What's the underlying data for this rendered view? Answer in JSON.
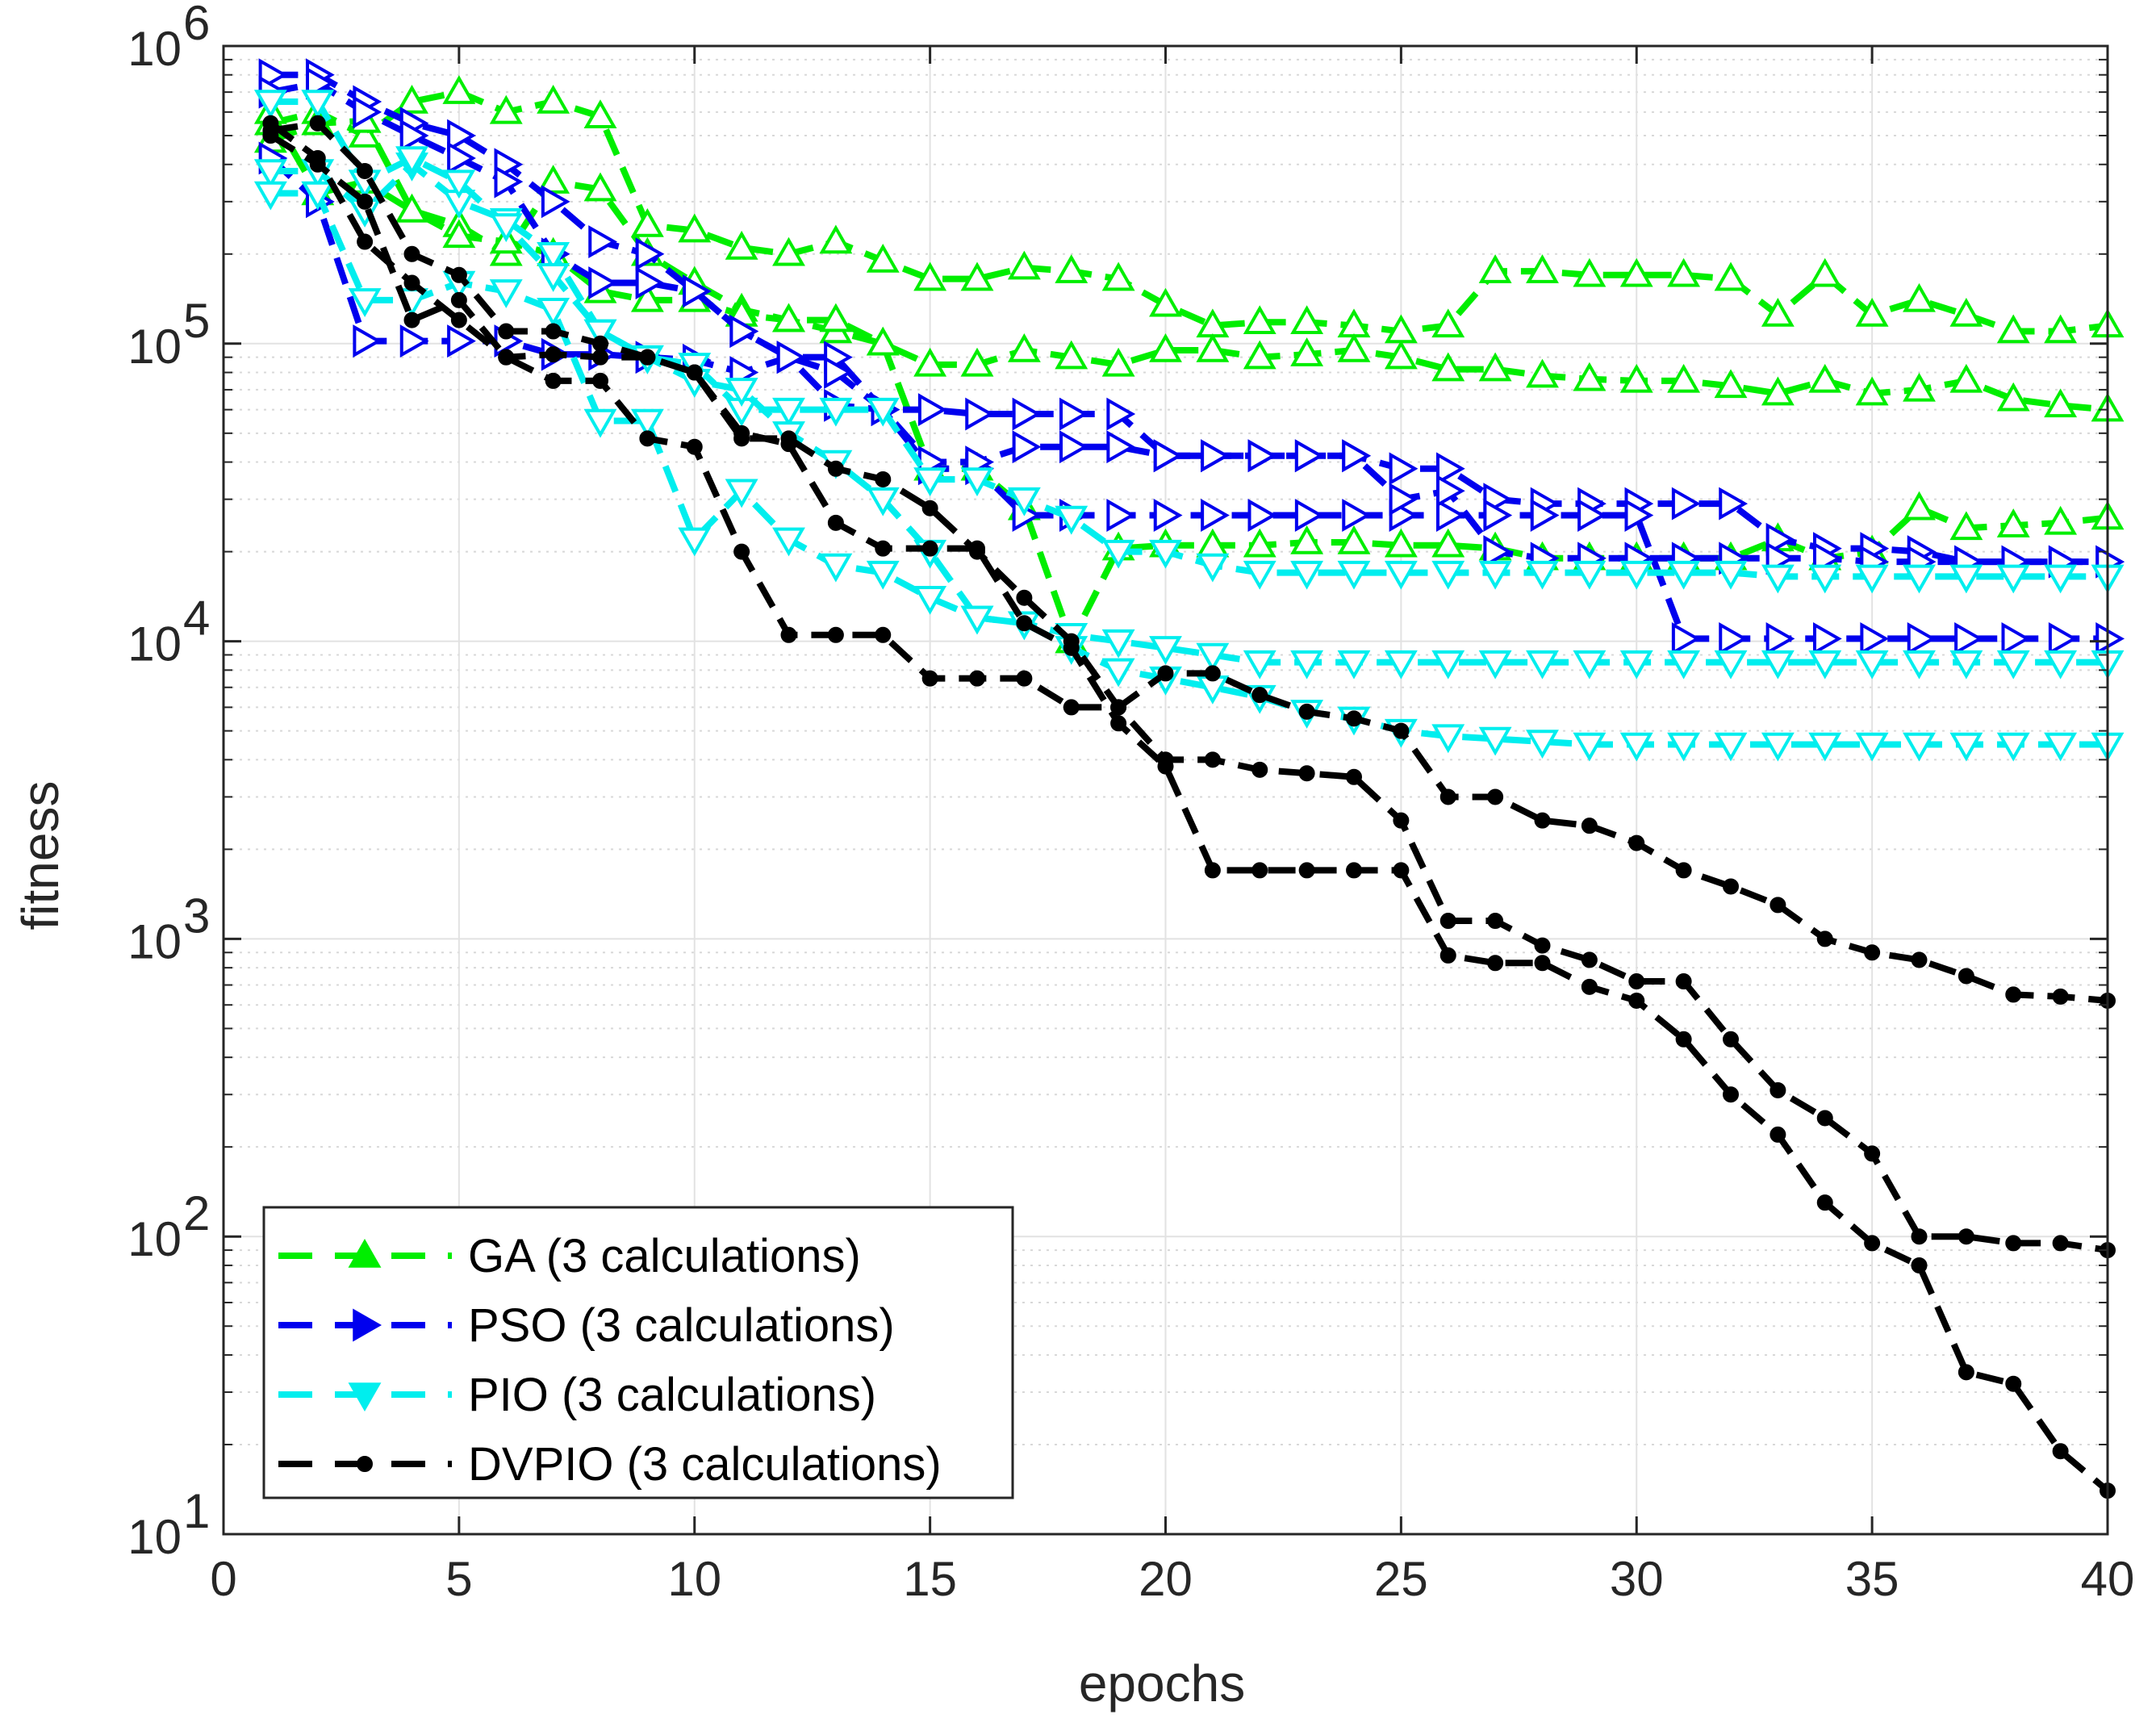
{
  "chart_data": {
    "type": "line",
    "title": "",
    "xlabel": "epochs",
    "ylabel": "fitness",
    "xscale": "linear",
    "yscale": "log",
    "xlim": [
      0,
      40
    ],
    "ylim": [
      10,
      1000000
    ],
    "grid": true,
    "minor_grid_y": true,
    "legend_position": "bottom-left",
    "x_ticks": [
      {
        "value": 0,
        "label": "0"
      },
      {
        "value": 5,
        "label": "5"
      },
      {
        "value": 10,
        "label": "10"
      },
      {
        "value": 15,
        "label": "15"
      },
      {
        "value": 20,
        "label": "20"
      },
      {
        "value": 25,
        "label": "25"
      },
      {
        "value": 30,
        "label": "30"
      },
      {
        "value": 35,
        "label": "35"
      },
      {
        "value": 40,
        "label": "40"
      }
    ],
    "y_ticks": [
      {
        "value": 10,
        "base": "10",
        "exp": "1"
      },
      {
        "value": 100,
        "base": "10",
        "exp": "2"
      },
      {
        "value": 1000,
        "base": "10",
        "exp": "3"
      },
      {
        "value": 10000,
        "base": "10",
        "exp": "4"
      },
      {
        "value": 100000,
        "base": "10",
        "exp": "5"
      },
      {
        "value": 1000000,
        "base": "10",
        "exp": "6"
      }
    ],
    "x": [
      1,
      2,
      3,
      4,
      5,
      6,
      7,
      8,
      9,
      10,
      11,
      12,
      13,
      14,
      15,
      16,
      17,
      18,
      19,
      20,
      21,
      22,
      23,
      24,
      25,
      26,
      27,
      28,
      29,
      30,
      31,
      32,
      33,
      34,
      35,
      36,
      37,
      38,
      39,
      40
    ],
    "legend": [
      {
        "label": "GA (3 calculations)",
        "color": "#00ee00",
        "marker": "triangle-up"
      },
      {
        "label": "PSO (3 calculations)",
        "color": "#0000ee",
        "marker": "triangle-right"
      },
      {
        "label": "PIO (3 calculations)",
        "color": "#00eeee",
        "marker": "triangle-down"
      },
      {
        "label": "DVPIO (3 calculations)",
        "color": "#000000",
        "marker": "dot"
      }
    ],
    "series": [
      {
        "name": "GA run 1",
        "group": "GA",
        "color": "#00ee00",
        "marker": "triangle-up",
        "values": [
          550000,
          600000,
          500000,
          650000,
          700000,
          600000,
          650000,
          580000,
          250000,
          240000,
          210000,
          200000,
          220000,
          190000,
          165000,
          165000,
          180000,
          175000,
          165000,
          135000,
          115000,
          118000,
          118000,
          115000,
          110000,
          115000,
          175000,
          175000,
          170000,
          170000,
          170000,
          165000,
          125000,
          170000,
          125000,
          140000,
          125000,
          110000,
          110000,
          115000
        ]
      },
      {
        "name": "GA run 2",
        "group": "GA",
        "color": "#00ee00",
        "marker": "triangle-up",
        "values": [
          480000,
          550000,
          560000,
          280000,
          250000,
          200000,
          350000,
          330000,
          200000,
          160000,
          130000,
          120000,
          110000,
          100000,
          85000,
          85000,
          95000,
          90000,
          85000,
          95000,
          95000,
          90000,
          92000,
          95000,
          90000,
          82000,
          82000,
          78000,
          76000,
          75000,
          75000,
          72000,
          68000,
          75000,
          68000,
          70000,
          75000,
          65000,
          62000,
          60000
        ]
      },
      {
        "name": "GA run 3",
        "group": "GA",
        "color": "#00ee00",
        "marker": "triangle-up",
        "values": [
          600000,
          320000,
          350000,
          280000,
          230000,
          220000,
          200000,
          150000,
          140000,
          140000,
          125000,
          120000,
          120000,
          100000,
          38000,
          38000,
          28000,
          10000,
          20500,
          21000,
          21000,
          21000,
          21500,
          21500,
          21000,
          21000,
          20500,
          19000,
          19000,
          19000,
          19000,
          19000,
          22000,
          19000,
          20000,
          28000,
          24000,
          24500,
          25000,
          26000
        ]
      },
      {
        "name": "PSO run 1",
        "group": "PSO",
        "color": "#0000ee",
        "marker": "triangle-right",
        "values": [
          800000,
          800000,
          650000,
          550000,
          500000,
          400000,
          300000,
          220000,
          200000,
          150000,
          110000,
          90000,
          90000,
          60000,
          60000,
          58000,
          58000,
          58000,
          58000,
          42000,
          42000,
          42000,
          42000,
          42000,
          38000,
          38000,
          30000,
          29000,
          29000,
          29000,
          29000,
          29000,
          22000,
          20500,
          20500,
          20000,
          18500,
          18500,
          18500,
          18500
        ]
      },
      {
        "name": "PSO run 2",
        "group": "PSO",
        "color": "#0000ee",
        "marker": "triangle-right",
        "values": [
          420000,
          300000,
          102000,
          102000,
          102000,
          102000,
          92000,
          92000,
          90000,
          88000,
          80000,
          90000,
          62000,
          60000,
          38000,
          38000,
          26500,
          26500,
          26500,
          26500,
          26500,
          26500,
          26500,
          26500,
          26500,
          26500,
          26500,
          26500,
          26500,
          26500,
          10200,
          10200,
          10200,
          10200,
          10200,
          10200,
          10200,
          10200,
          10200,
          10200
        ]
      },
      {
        "name": "PSO run 3",
        "group": "PSO",
        "color": "#0000ee",
        "marker": "triangle-right",
        "values": [
          700000,
          750000,
          600000,
          500000,
          420000,
          350000,
          200000,
          160000,
          160000,
          150000,
          110000,
          90000,
          80000,
          60000,
          40000,
          40000,
          45000,
          45000,
          45000,
          42000,
          42000,
          42000,
          42000,
          42000,
          30000,
          32000,
          20000,
          19000,
          19000,
          19000,
          19000,
          19000,
          19000,
          19000,
          18500,
          18500,
          18500,
          18500,
          18500,
          18500
        ]
      },
      {
        "name": "PIO run 1",
        "group": "PIO",
        "color": "#00eeee",
        "marker": "triangle-down",
        "values": [
          380000,
          380000,
          280000,
          400000,
          300000,
          260000,
          200000,
          110000,
          90000,
          85000,
          60000,
          60000,
          60000,
          60000,
          35000,
          35000,
          30000,
          26000,
          20000,
          20000,
          18000,
          17000,
          17000,
          17000,
          17000,
          17000,
          17000,
          17000,
          17000,
          17000,
          17000,
          17000,
          16500,
          16500,
          16500,
          16500,
          16500,
          16500,
          16500,
          16500
        ]
      },
      {
        "name": "PIO run 2",
        "group": "PIO",
        "color": "#00eeee",
        "marker": "triangle-down",
        "values": [
          320000,
          320000,
          140000,
          140000,
          160000,
          150000,
          130000,
          55000,
          55000,
          22000,
          32000,
          22000,
          18000,
          17000,
          14000,
          12000,
          11500,
          10500,
          10000,
          9500,
          9000,
          8500,
          8500,
          8500,
          8500,
          8500,
          8500,
          8500,
          8500,
          8500,
          8500,
          8500,
          8500,
          8500,
          8500,
          8500,
          8500,
          8500,
          8500,
          8500
        ]
      },
      {
        "name": "PIO run 3",
        "group": "PIO",
        "color": "#00eeee",
        "marker": "triangle-down",
        "values": [
          650000,
          650000,
          350000,
          420000,
          350000,
          250000,
          170000,
          110000,
          90000,
          75000,
          70000,
          50000,
          40000,
          30000,
          20000,
          12000,
          11500,
          9500,
          8000,
          7500,
          7000,
          6500,
          5800,
          5500,
          5000,
          4800,
          4700,
          4600,
          4500,
          4500,
          4500,
          4500,
          4500,
          4500,
          4500,
          4500,
          4500,
          4500,
          4500,
          4500
        ]
      },
      {
        "name": "DVPIO run 1",
        "group": "DVPIO",
        "color": "#000000",
        "marker": "dot",
        "values": [
          550000,
          420000,
          220000,
          160000,
          120000,
          90000,
          92000,
          90000,
          90000,
          80000,
          48000,
          48000,
          38000,
          35000,
          28000,
          20000,
          14000,
          10000,
          6000,
          4000,
          4000,
          3700,
          3600,
          3500,
          2500,
          1150,
          1150,
          950,
          850,
          720,
          720,
          460,
          310,
          250,
          190,
          100,
          100,
          95,
          95,
          90
        ]
      },
      {
        "name": "DVPIO run 2",
        "group": "DVPIO",
        "color": "#000000",
        "marker": "dot",
        "values": [
          520000,
          550000,
          380000,
          200000,
          170000,
          110000,
          110000,
          100000,
          90000,
          80000,
          50000,
          46000,
          25000,
          20500,
          20500,
          20500,
          11500,
          9500,
          5300,
          3800,
          1700,
          1700,
          1700,
          1700,
          1700,
          880,
          830,
          830,
          690,
          620,
          460,
          300,
          220,
          130,
          95,
          80,
          35,
          32,
          19,
          14
        ]
      },
      {
        "name": "DVPIO run 3",
        "group": "DVPIO",
        "color": "#000000",
        "marker": "dot",
        "values": [
          500000,
          400000,
          300000,
          120000,
          140000,
          90000,
          75000,
          75000,
          48000,
          45000,
          20000,
          10500,
          10500,
          10500,
          7500,
          7500,
          7500,
          6000,
          6000,
          7800,
          7800,
          6600,
          5800,
          5500,
          5000,
          3000,
          3000,
          2500,
          2400,
          2100,
          1700,
          1500,
          1300,
          1000,
          900,
          850,
          750,
          650,
          640,
          620
        ]
      }
    ]
  }
}
